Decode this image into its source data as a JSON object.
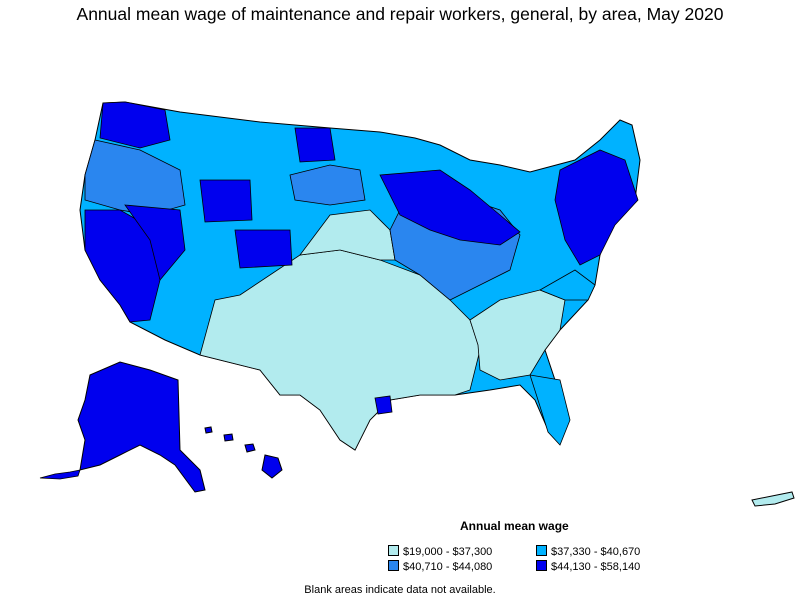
{
  "title": "Annual mean wage of maintenance and repair workers, general, by area, May 2020",
  "legend": {
    "title": "Annual mean wage",
    "items": [
      {
        "label": "$19,000 - $37,300",
        "color": "#b2ebee"
      },
      {
        "label": "$37,330 - $40,670",
        "color": "#00b2ff"
      },
      {
        "label": "$40,710 - $44,080",
        "color": "#2a86ef"
      },
      {
        "label": "$44,130 - $58,140",
        "color": "#0000ee"
      }
    ]
  },
  "note": "Blank areas indicate data not available.",
  "colors": {
    "low": "#b2ebee",
    "mid_low": "#00b2ff",
    "mid_high": "#2a86ef",
    "high": "#0000ee",
    "border": "#000000"
  }
}
